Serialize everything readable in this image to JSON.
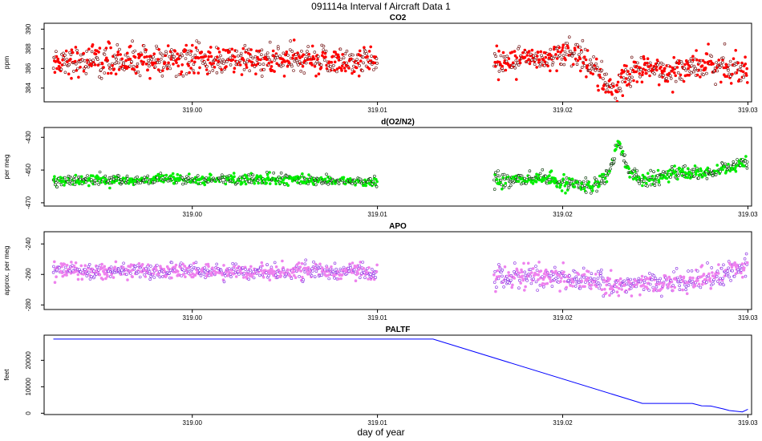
{
  "figure": {
    "title": "091114a   Interval f Aircraft Data 1",
    "xlabel": "day of year"
  },
  "colors": {
    "co2": "#ff0000",
    "o2n2": "#00ee00",
    "apo": "#ee82ee",
    "paltf": "#0000ff",
    "outline_dark": "#660000"
  },
  "chart_data": [
    {
      "type": "scatter",
      "title": "CO2",
      "ylabel": "ppm",
      "xlim": [
        318.992,
        319.0302
      ],
      "ylim": [
        382.6,
        390.6
      ],
      "yticks": [
        384,
        386,
        388,
        390
      ],
      "xticks": [
        319.0,
        319.01,
        319.02,
        319.03
      ],
      "xticklabels": [
        "319.00",
        "319.01",
        "319.02",
        "319.03"
      ],
      "segments": [
        [
          318.9925,
          319.01,
          388.0,
          0.75
        ],
        [
          319.0163,
          319.03,
          386.8,
          0.7
        ]
      ],
      "trend": [
        [
          319.0163,
          386.8
        ],
        [
          319.018,
          386.8
        ],
        [
          319.02,
          387.6
        ],
        [
          319.021,
          387.4
        ],
        [
          319.0222,
          385.0
        ],
        [
          319.0228,
          383.3
        ],
        [
          319.0232,
          384.8
        ],
        [
          319.024,
          385.8
        ],
        [
          319.0255,
          385.8
        ],
        [
          319.027,
          386.2
        ],
        [
          319.0285,
          386.2
        ],
        [
          319.03,
          386.0
        ]
      ]
    },
    {
      "type": "scatter",
      "title": "d(O2/N2)",
      "ylabel": "per meg",
      "xlim": [
        318.992,
        319.0302
      ],
      "ylim": [
        -472,
        -424
      ],
      "yticks": [
        -470,
        -450,
        -430
      ],
      "xticks": [
        319.0,
        319.01,
        319.02,
        319.03
      ],
      "xticklabels": [
        "319.00",
        "319.01",
        "319.02",
        "319.03"
      ],
      "segments": [
        [
          318.9925,
          319.01,
          -456.0,
          1.5
        ],
        [
          319.0163,
          319.03,
          -456.0,
          2.0
        ]
      ],
      "trend": [
        [
          318.9925,
          -456.5
        ],
        [
          319.005,
          -455.5
        ],
        [
          319.01,
          -457.5
        ],
        [
          319.0163,
          -456.5
        ],
        [
          319.019,
          -455.0
        ],
        [
          319.02,
          -458.5
        ],
        [
          319.0215,
          -460.0
        ],
        [
          319.0225,
          -452.0
        ],
        [
          319.023,
          -432.0
        ],
        [
          319.0236,
          -452.0
        ],
        [
          319.0245,
          -456.0
        ],
        [
          319.026,
          -451.5
        ],
        [
          319.028,
          -452.5
        ],
        [
          319.03,
          -445.0
        ]
      ]
    },
    {
      "type": "scatter",
      "title": "APO",
      "ylabel": "approx. per meg",
      "xlim": [
        318.992,
        319.0302
      ],
      "ylim": [
        -283,
        -232
      ],
      "yticks": [
        -280,
        -260,
        -240
      ],
      "xticks": [
        319.0,
        319.01,
        319.02,
        319.03
      ],
      "xticklabels": [
        "319.00",
        "319.01",
        "319.02",
        "319.03"
      ],
      "segments": [
        [
          318.9925,
          319.01,
          -258.0,
          2.5
        ],
        [
          319.0163,
          319.03,
          -264.0,
          3.5
        ]
      ],
      "trend": [
        [
          318.9925,
          -257.5
        ],
        [
          319.005,
          -258.0
        ],
        [
          319.01,
          -258.5
        ],
        [
          319.0163,
          -261.0
        ],
        [
          319.02,
          -262.0
        ],
        [
          319.023,
          -266.5
        ],
        [
          319.026,
          -265.0
        ],
        [
          319.028,
          -262.0
        ],
        [
          319.03,
          -254.0
        ]
      ]
    },
    {
      "type": "line",
      "title": "PALTF",
      "ylabel": "feet",
      "xlim": [
        318.992,
        319.0302
      ],
      "ylim": [
        -500,
        29500
      ],
      "yticks": [
        0,
        10000,
        20000
      ],
      "xticks": [
        319.0,
        319.01,
        319.02,
        319.03
      ],
      "xticklabels": [
        "319.00",
        "319.01",
        "319.02",
        "319.03"
      ],
      "x": [
        318.9925,
        319.013,
        319.0243,
        319.027,
        319.0275,
        319.028,
        319.0287,
        319.029,
        319.0297,
        319.03
      ],
      "y": [
        28000,
        28000,
        3700,
        3700,
        2800,
        2700,
        1600,
        1000,
        500,
        1500
      ]
    }
  ]
}
